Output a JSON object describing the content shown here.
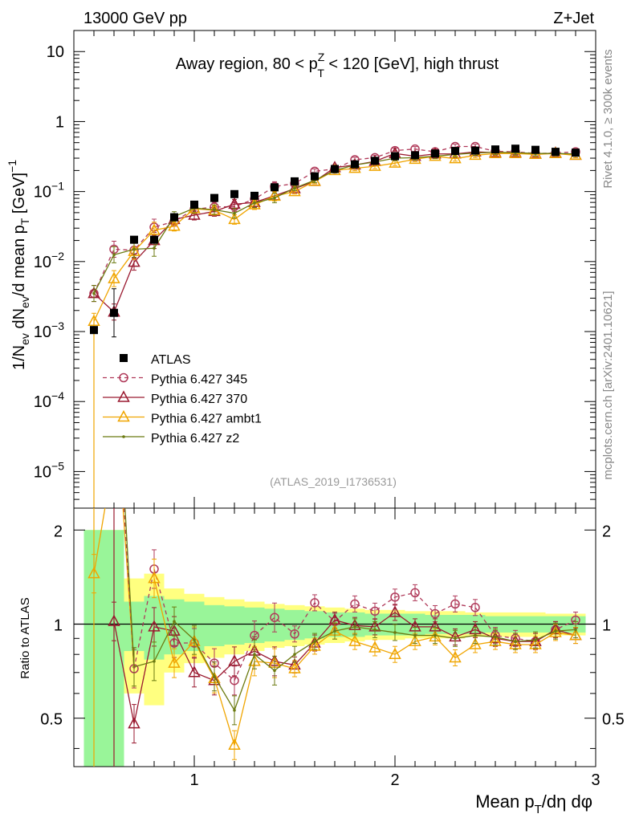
{
  "header": {
    "left": "13000 GeV pp",
    "right": "Z+Jet"
  },
  "side_labels": {
    "top": "Rivet 4.1.0, ≥ 300k events",
    "bottom": "mcplots.cern.ch [arXiv:2401.10621]"
  },
  "colors": {
    "atlas": "#000000",
    "p345": "#b03a5a",
    "p370": "#9a1a30",
    "ambt1": "#f0a500",
    "z2": "#6b7a10",
    "band_inner": "#99f599",
    "band_outer": "#ffff80"
  },
  "chart_data": [
    {
      "type": "line",
      "title": "Away region, 80 < p_T^Z < 120 [GeV], high thrust",
      "title_parts": {
        "pre": "Away region, 80 < p",
        "sup": "Z",
        "sub": "T",
        "post": " < 120 [GeV], high thrust"
      },
      "watermark": "(ATLAS_2019_I1736531)",
      "ylabel": "1/N_ev dN_ev/d mean p_T [GeV]^-1",
      "yscale": "log",
      "ylim": [
        3e-06,
        20
      ],
      "xlim": [
        0.4,
        3.0
      ],
      "ytick_labels": [
        {
          "v": 10,
          "base": "10",
          "exp": ""
        },
        {
          "v": 1,
          "base": "1",
          "exp": ""
        },
        {
          "v": 0.1,
          "base": "10",
          "exp": "−1"
        },
        {
          "v": 0.01,
          "base": "10",
          "exp": "−2"
        },
        {
          "v": 0.001,
          "base": "10",
          "exp": "−3"
        },
        {
          "v": 0.0001,
          "base": "10",
          "exp": "−4"
        },
        {
          "v": 1e-05,
          "base": "10",
          "exp": "−5"
        }
      ],
      "x": [
        0.5,
        0.6,
        0.7,
        0.8,
        0.9,
        1.0,
        1.1,
        1.2,
        1.3,
        1.4,
        1.5,
        1.6,
        1.7,
        1.8,
        1.9,
        2.0,
        2.1,
        2.2,
        2.3,
        2.4,
        2.5,
        2.6,
        2.7,
        2.8,
        2.9
      ],
      "legend": [
        "ATLAS",
        "Pythia 6.427 345",
        "Pythia 6.427 370",
        "Pythia 6.427 ambt1",
        "Pythia 6.427 z2"
      ],
      "series": [
        {
          "name": "ATLAS",
          "values": [
            0.00105,
            0.00185,
            0.0205,
            0.0205,
            0.043,
            0.065,
            0.081,
            0.092,
            0.087,
            0.115,
            0.14,
            0.165,
            0.21,
            0.245,
            0.275,
            0.32,
            0.33,
            0.35,
            0.38,
            0.385,
            0.4,
            0.41,
            0.395,
            0.37,
            0.36
          ]
        },
        {
          "name": "Pythia 6.427 345",
          "values": [
            0.0035,
            0.015,
            0.0145,
            0.031,
            0.0375,
            0.056,
            0.06,
            0.061,
            0.078,
            0.118,
            0.13,
            0.195,
            0.21,
            0.285,
            0.305,
            0.385,
            0.405,
            0.37,
            0.44,
            0.44,
            0.375,
            0.37,
            0.35,
            0.355,
            0.37
          ]
        },
        {
          "name": "Pythia 6.427 370",
          "values": [
            0.0035,
            0.0019,
            0.0098,
            0.02,
            0.04,
            0.046,
            0.052,
            0.066,
            0.07,
            0.087,
            0.11,
            0.14,
            0.22,
            0.24,
            0.27,
            0.35,
            0.32,
            0.345,
            0.345,
            0.37,
            0.36,
            0.36,
            0.345,
            0.355,
            0.33
          ]
        },
        {
          "name": "Pythia 6.427 ambt1",
          "values": [
            0.0014,
            0.0057,
            0.014,
            0.028,
            0.032,
            0.057,
            0.054,
            0.04,
            0.065,
            0.086,
            0.1,
            0.14,
            0.2,
            0.215,
            0.23,
            0.255,
            0.29,
            0.32,
            0.295,
            0.33,
            0.35,
            0.35,
            0.34,
            0.35,
            0.33
          ]
        },
        {
          "name": "Pythia 6.427 z2",
          "values": [
            0.0035,
            0.0125,
            0.015,
            0.0155,
            0.044,
            0.058,
            0.055,
            0.049,
            0.069,
            0.081,
            0.112,
            0.145,
            0.2,
            0.24,
            0.265,
            0.3,
            0.305,
            0.32,
            0.34,
            0.355,
            0.365,
            0.36,
            0.35,
            0.35,
            0.345
          ]
        }
      ]
    },
    {
      "type": "line",
      "ylabel": "Ratio to ATLAS",
      "xlabel": "Mean p_T/dη dφ",
      "xlabel_parts": {
        "pre": "Mean p",
        "sub": "T",
        "post": "/dη dφ"
      },
      "ylim": [
        0.35,
        2.35
      ],
      "xlim": [
        0.4,
        3.0
      ],
      "ytick_labels": [
        "0.5",
        "1",
        "2"
      ],
      "xtick_labels": [
        "1",
        "2",
        "3"
      ],
      "x": [
        0.5,
        0.6,
        0.7,
        0.8,
        0.9,
        1.0,
        1.1,
        1.2,
        1.3,
        1.4,
        1.5,
        1.6,
        1.7,
        1.8,
        1.9,
        2.0,
        2.1,
        2.2,
        2.3,
        2.4,
        2.5,
        2.6,
        2.7,
        2.8,
        2.9
      ],
      "uncertainty_band": {
        "inner": [
          1.0,
          1.0,
          0.18,
          0.23,
          0.2,
          0.18,
          0.15,
          0.14,
          0.13,
          0.12,
          0.11,
          0.1,
          0.09,
          0.09,
          0.08,
          0.08,
          0.08,
          0.07,
          0.07,
          0.07,
          0.06,
          0.06,
          0.06,
          0.06,
          0.06
        ],
        "outer": [
          1.0,
          1.0,
          0.4,
          0.45,
          0.3,
          0.25,
          0.22,
          0.2,
          0.18,
          0.16,
          0.15,
          0.14,
          0.13,
          0.12,
          0.11,
          0.11,
          0.1,
          0.1,
          0.1,
          0.09,
          0.09,
          0.09,
          0.09,
          0.08,
          0.08
        ]
      },
      "series": [
        {
          "name": "Pythia 6.427 345",
          "values": [
            null,
            null,
            0.72,
            1.5,
            0.87,
            0.87,
            0.75,
            0.66,
            0.92,
            1.05,
            0.93,
            1.17,
            1.02,
            1.16,
            1.1,
            1.22,
            1.26,
            1.08,
            1.16,
            1.13,
            0.92,
            0.9,
            0.88,
            0.96,
            1.03
          ]
        },
        {
          "name": "Pythia 6.427 370",
          "values": [
            null,
            1.02,
            0.48,
            0.98,
            0.95,
            0.7,
            0.66,
            0.76,
            0.82,
            0.76,
            0.74,
            0.87,
            1.03,
            0.99,
            0.98,
            1.09,
            0.98,
            0.98,
            0.91,
            0.96,
            0.9,
            0.88,
            0.88,
            0.96,
            0.92
          ]
        },
        {
          "name": "Pythia 6.427 ambt1",
          "values": [
            1.45,
            null,
            null,
            1.4,
            0.75,
            0.88,
            0.67,
            0.41,
            0.76,
            0.75,
            0.72,
            0.85,
            0.95,
            0.88,
            0.84,
            0.8,
            0.88,
            0.91,
            0.78,
            0.86,
            0.88,
            0.86,
            0.86,
            0.94,
            0.92
          ]
        },
        {
          "name": "Pythia 6.427 z2",
          "values": [
            null,
            null,
            0.73,
            0.76,
            1.02,
            0.89,
            0.68,
            0.53,
            0.8,
            0.71,
            0.8,
            0.88,
            0.95,
            0.98,
            0.96,
            0.94,
            0.92,
            0.92,
            0.9,
            0.92,
            0.91,
            0.88,
            0.89,
            0.95,
            0.96
          ]
        }
      ]
    }
  ]
}
